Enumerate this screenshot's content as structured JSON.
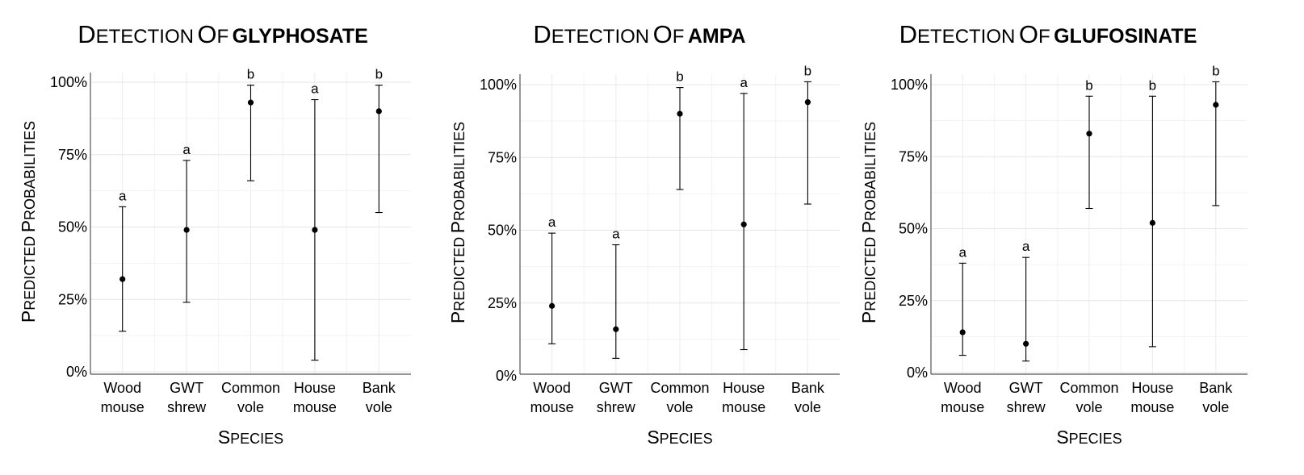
{
  "chart_data": [
    {
      "type": "scatter",
      "title_prefix": "Detection of ",
      "title_compound": "glyphosate",
      "xlabel": "Species",
      "ylabel": "Predicted probabilities",
      "categories": [
        [
          "Wood",
          "mouse"
        ],
        [
          "GWT",
          "shrew"
        ],
        [
          "Common",
          "vole"
        ],
        [
          "House",
          "mouse"
        ],
        [
          "Bank",
          "vole"
        ]
      ],
      "y_ticks": [
        "0%",
        "25%",
        "50%",
        "75%",
        "100%"
      ],
      "ylim": [
        0,
        1
      ],
      "grid": true,
      "points": [
        {
          "estimate": 0.32,
          "lower": 0.14,
          "upper": 0.57,
          "group": "a"
        },
        {
          "estimate": 0.49,
          "lower": 0.24,
          "upper": 0.73,
          "group": "a"
        },
        {
          "estimate": 0.93,
          "lower": 0.66,
          "upper": 0.99,
          "group": "b"
        },
        {
          "estimate": 0.49,
          "lower": 0.04,
          "upper": 0.94,
          "group": "a"
        },
        {
          "estimate": 0.9,
          "lower": 0.55,
          "upper": 0.99,
          "group": "b"
        }
      ]
    },
    {
      "type": "scatter",
      "title_prefix": "Detection of ",
      "title_compound": "AMPA",
      "xlabel": "Species",
      "ylabel": "Predicted probabilities",
      "categories": [
        [
          "Wood",
          "mouse"
        ],
        [
          "GWT",
          "shrew"
        ],
        [
          "Common",
          "vole"
        ],
        [
          "House",
          "mouse"
        ],
        [
          "Bank",
          "vole"
        ]
      ],
      "y_ticks": [
        "0%",
        "25%",
        "50%",
        "75%",
        "100%"
      ],
      "ylim": [
        0,
        1
      ],
      "grid": true,
      "points": [
        {
          "estimate": 0.24,
          "lower": 0.11,
          "upper": 0.49,
          "group": "a"
        },
        {
          "estimate": 0.16,
          "lower": 0.06,
          "upper": 0.45,
          "group": "a"
        },
        {
          "estimate": 0.9,
          "lower": 0.64,
          "upper": 0.99,
          "group": "b"
        },
        {
          "estimate": 0.52,
          "lower": 0.09,
          "upper": 0.97,
          "group": "a"
        },
        {
          "estimate": 0.94,
          "lower": 0.59,
          "upper": 1.01,
          "group": "b"
        }
      ]
    },
    {
      "type": "scatter",
      "title_prefix": "Detection of ",
      "title_compound": "glufosinate",
      "xlabel": "Species",
      "ylabel": "Predicted probabilities",
      "categories": [
        [
          "Wood",
          "mouse"
        ],
        [
          "GWT",
          "shrew"
        ],
        [
          "Common",
          "vole"
        ],
        [
          "House",
          "mouse"
        ],
        [
          "Bank",
          "vole"
        ]
      ],
      "y_ticks": [
        "0%",
        "25%",
        "50%",
        "75%",
        "100%"
      ],
      "ylim": [
        0,
        1
      ],
      "grid": true,
      "points": [
        {
          "estimate": 0.14,
          "lower": 0.06,
          "upper": 0.38,
          "group": "a"
        },
        {
          "estimate": 0.1,
          "lower": 0.04,
          "upper": 0.4,
          "group": "a"
        },
        {
          "estimate": 0.83,
          "lower": 0.57,
          "upper": 0.96,
          "group": "b"
        },
        {
          "estimate": 0.52,
          "lower": 0.09,
          "upper": 0.96,
          "group": "b"
        },
        {
          "estimate": 0.93,
          "lower": 0.58,
          "upper": 1.01,
          "group": "b"
        }
      ]
    }
  ]
}
